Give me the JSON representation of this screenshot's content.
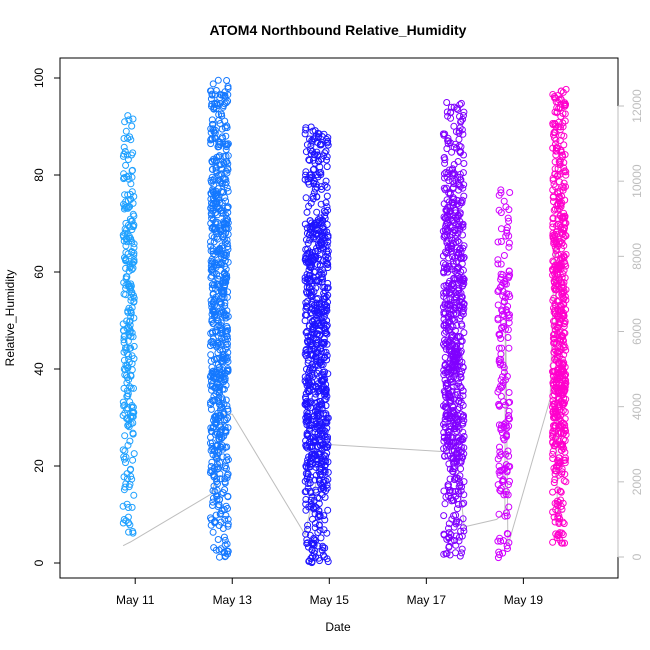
{
  "chart_data": {
    "type": "scatter",
    "title": "ATOM4 Northbound Relative_Humidity",
    "xlabel": "Date",
    "ylabel": "Relative_Humidity",
    "ylim": [
      0,
      100
    ],
    "y_ticks": [
      0,
      20,
      40,
      60,
      80,
      100
    ],
    "x_ticks": [
      {
        "value": 11,
        "label": "May 11"
      },
      {
        "value": 13,
        "label": "May 13"
      },
      {
        "value": 15,
        "label": "May 15"
      },
      {
        "value": 17,
        "label": "May 17"
      },
      {
        "value": 19,
        "label": "May 19"
      }
    ],
    "xlim": [
      9.45,
      20.95
    ],
    "y2lim": [
      0,
      12000
    ],
    "y2_ticks": [
      0,
      2000,
      4000,
      6000,
      8000,
      10000,
      12000
    ],
    "y2_color": "#bebebe",
    "marker": "open-circle",
    "grid": false,
    "legend": "none",
    "series": [
      {
        "color": "#1ea0ff",
        "x_range": [
          10.75,
          10.98
        ],
        "y_range": [
          6,
          93
        ],
        "count": 260
      },
      {
        "color": "#1478ff",
        "x_range": [
          12.55,
          12.92
        ],
        "y_range": [
          1,
          100
        ],
        "count": 700
      },
      {
        "color": "#1e14ff",
        "x_range": [
          14.5,
          14.98
        ],
        "y_range": [
          0,
          90
        ],
        "count": 800
      },
      {
        "color": "#8000ff",
        "x_range": [
          17.35,
          17.78
        ],
        "y_range": [
          1,
          95
        ],
        "count": 700
      },
      {
        "color": "#d000ff",
        "x_range": [
          18.47,
          18.72
        ],
        "y_range": [
          1,
          77
        ],
        "count": 180
      },
      {
        "color": "#ff00cc",
        "x_range": [
          19.6,
          19.88
        ],
        "y_range": [
          4,
          98
        ],
        "count": 600
      }
    ],
    "counter_line": {
      "color": "#bebebe",
      "points": [
        [
          10.75,
          300
        ],
        [
          10.9,
          400
        ],
        [
          12.6,
          1700
        ],
        [
          12.8,
          3800
        ],
        [
          13.0,
          3800
        ],
        [
          14.5,
          600
        ],
        [
          14.9,
          3000
        ],
        [
          17.4,
          2800
        ],
        [
          17.6,
          3000
        ],
        [
          17.78,
          800
        ],
        [
          18.45,
          1000
        ],
        [
          18.62,
          1200
        ],
        [
          18.63,
          7200
        ],
        [
          18.68,
          300
        ],
        [
          19.55,
          4200
        ],
        [
          19.65,
          8600
        ],
        [
          19.7,
          1200
        ],
        [
          19.85,
          1200
        ]
      ]
    }
  }
}
